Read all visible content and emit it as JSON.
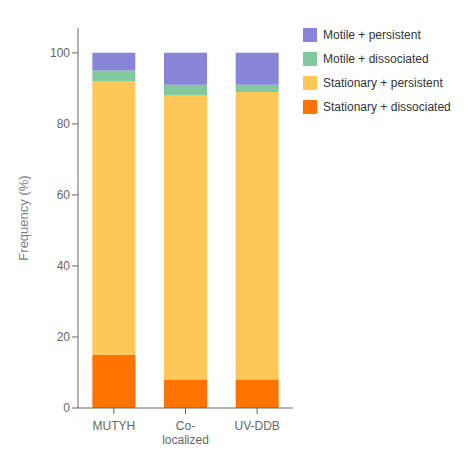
{
  "chart_data": {
    "type": "bar",
    "categories": [
      "MUTYH",
      "Co-\nlocalized",
      "UV-DDB"
    ],
    "series": [
      {
        "name": "Motile + persistent",
        "values": [
          5,
          9,
          9
        ]
      },
      {
        "name": "Motile + dissociated",
        "values": [
          3,
          3,
          2
        ]
      },
      {
        "name": "Stationary + persistent",
        "values": [
          77,
          80,
          81
        ]
      },
      {
        "name": "Stationary + dissociated",
        "values": [
          15,
          8,
          8
        ]
      }
    ],
    "y_label": "Frequency (%)",
    "ylim": [
      0,
      107
    ],
    "yticks": [
      0,
      20,
      40,
      60,
      80,
      100
    ],
    "stacked": true,
    "grid": false,
    "legend": "right"
  }
}
